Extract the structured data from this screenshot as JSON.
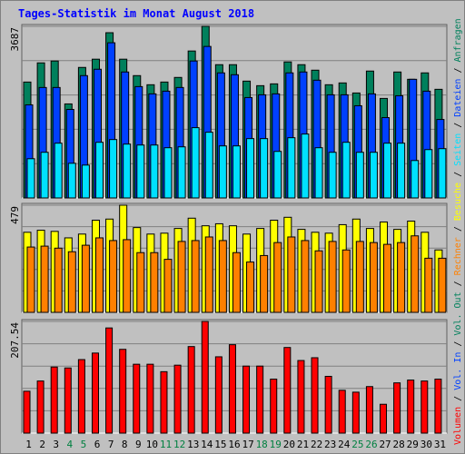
{
  "title": "Tages-Statistik im Monat August 2018",
  "legend_separator": " / ",
  "chart_data": [
    {
      "type": "bar",
      "ylim": [
        0,
        3687
      ],
      "yticks": [
        3687
      ],
      "series": [
        {
          "name": "Anfragen",
          "color": "#00805c",
          "values": [
            2490,
            2902,
            2942,
            2020,
            2804,
            2981,
            3550,
            2981,
            2628,
            2432,
            2490,
            2589,
            3157,
            3687,
            2863,
            2863,
            2510,
            2412,
            2451,
            2922,
            2863,
            2745,
            2432,
            2471,
            2255,
            2726,
            2138,
            2706,
            2549,
            2687,
            2334
          ]
        },
        {
          "name": "Dateien",
          "color": "#0040ff",
          "values": [
            2000,
            2373,
            2373,
            1902,
            2628,
            2765,
            3334,
            2706,
            2392,
            2236,
            2294,
            2373,
            2942,
            3255,
            2687,
            2647,
            2157,
            2216,
            2236,
            2687,
            2706,
            2530,
            2216,
            2216,
            1981,
            2236,
            1726,
            2196,
            2549,
            2294,
            1686
          ]
        },
        {
          "name": "Seiten",
          "color": "#00e0ff",
          "values": [
            843,
            981,
            1177,
            745,
            706,
            1196,
            1255,
            1157,
            1137,
            1137,
            1079,
            1098,
            1510,
            1412,
            1118,
            1118,
            1275,
            1275,
            1000,
            1294,
            1373,
            1079,
            981,
            1196,
            981,
            981,
            1177,
            1177,
            804,
            1039,
            1059
          ]
        }
      ]
    },
    {
      "type": "bar",
      "ylim": [
        0,
        479
      ],
      "yticks": [
        479
      ],
      "series": [
        {
          "name": "Besuche",
          "color": "#ffff00",
          "values": [
            358,
            367,
            362,
            333,
            350,
            412,
            417,
            479,
            379,
            350,
            354,
            375,
            421,
            387,
            396,
            387,
            350,
            375,
            412,
            425,
            371,
            358,
            354,
            392,
            417,
            375,
            404,
            371,
            408,
            358,
            279
          ]
        },
        {
          "name": "Rechner",
          "color": "#ff8000",
          "values": [
            292,
            296,
            287,
            271,
            300,
            333,
            321,
            325,
            267,
            267,
            237,
            317,
            321,
            337,
            321,
            267,
            225,
            254,
            312,
            337,
            321,
            275,
            317,
            279,
            317,
            312,
            304,
            312,
            342,
            242,
            242
          ]
        }
      ]
    },
    {
      "type": "bar",
      "ylim": [
        0,
        207.54
      ],
      "yticks": [
        207.54
      ],
      "categories": [
        "1",
        "2",
        "3",
        "4",
        "5",
        "6",
        "7",
        "8",
        "9",
        "10",
        "11",
        "12",
        "13",
        "14",
        "15",
        "16",
        "17",
        "18",
        "19",
        "20",
        "21",
        "22",
        "23",
        "24",
        "25",
        "26",
        "27",
        "28",
        "29",
        "30",
        "31"
      ],
      "category_colors": [
        "#000000",
        "#000000",
        "#000000",
        "#008040",
        "#008040",
        "#000000",
        "#000000",
        "#000000",
        "#000000",
        "#000000",
        "#008040",
        "#008040",
        "#000000",
        "#000000",
        "#000000",
        "#000000",
        "#000000",
        "#008040",
        "#008040",
        "#000000",
        "#000000",
        "#000000",
        "#000000",
        "#000000",
        "#008040",
        "#008040",
        "#000000",
        "#000000",
        "#000000",
        "#000000",
        "#000000"
      ],
      "series": [
        {
          "name": "Volumen",
          "color": "#ff0000",
          "values": [
            77.83,
            96.85,
            122.79,
            121.07,
            136.63,
            148.74,
            195.43,
            155.66,
            127.98,
            127.98,
            114.15,
            126.25,
            160.84,
            207.54,
            141.82,
            164.3,
            124.52,
            124.52,
            100.31,
            159.11,
            134.9,
            140.09,
            105.5,
            79.56,
            76.1,
            86.48,
            53.61,
            93.39,
            98.58,
            96.85,
            100.31
          ]
        }
      ],
      "legend_extra": [
        {
          "name": "Vol. In",
          "color": "#0040ff"
        },
        {
          "name": "Vol. Out",
          "color": "#00805c"
        }
      ]
    }
  ]
}
